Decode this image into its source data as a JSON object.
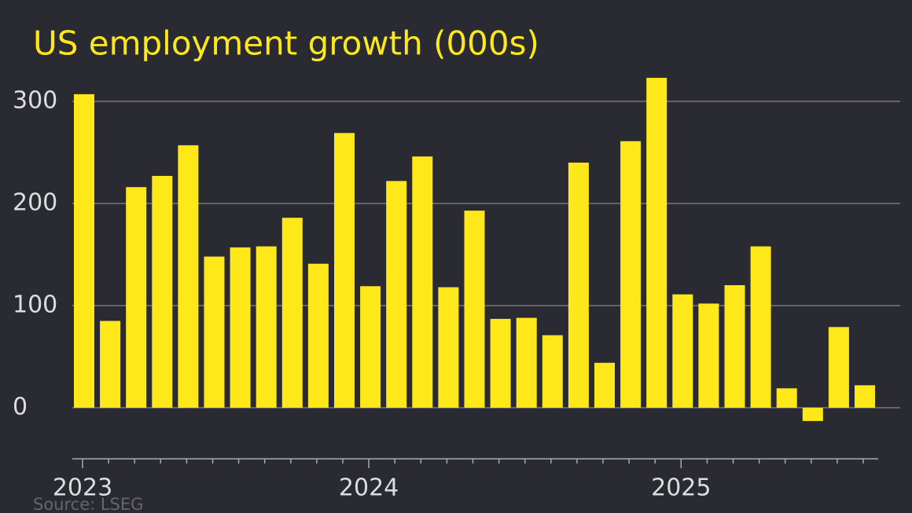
{
  "chart_data": {
    "type": "bar",
    "title": "US employment growth (000s)",
    "categories": [
      "2023",
      null,
      null,
      null,
      null,
      null,
      null,
      null,
      null,
      null,
      null,
      "2024",
      null,
      null,
      null,
      null,
      null,
      null,
      null,
      null,
      null,
      null,
      null,
      "2025",
      null,
      null,
      null,
      null,
      null,
      null,
      null
    ],
    "values": [
      307,
      85,
      216,
      227,
      257,
      148,
      157,
      158,
      186,
      141,
      269,
      119,
      222,
      246,
      118,
      193,
      87,
      88,
      71,
      240,
      44,
      261,
      323,
      111,
      102,
      120,
      158,
      19,
      -13,
      79,
      22
    ],
    "color": "#ffe81a",
    "ylim": [
      -50,
      325
    ],
    "yticks": [
      0,
      100,
      200,
      300
    ],
    "grid": true,
    "source": "Source: LSEG"
  }
}
